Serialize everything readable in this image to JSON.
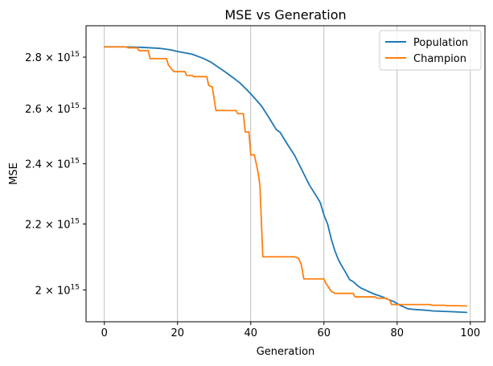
{
  "chart_data": {
    "type": "line",
    "title": "MSE vs Generation",
    "xlabel": "Generation",
    "ylabel": "MSE",
    "xlim": [
      -5,
      104
    ],
    "ylim": [
      1910000000000000.0,
      2930000000000000.0
    ],
    "yscale": "log",
    "grid": "x-major",
    "legend_position": "top-right",
    "x_ticks": [
      0,
      20,
      40,
      60,
      80,
      100
    ],
    "x_tick_labels": [
      "0",
      "20",
      "40",
      "60",
      "80",
      "100"
    ],
    "y_ticks": [
      2000000000000000.0,
      2200000000000000.0,
      2400000000000000.0,
      2600000000000000.0,
      2800000000000000.0
    ],
    "y_tick_labels": [
      {
        "mantissa": "2",
        "exponent": "15"
      },
      {
        "mantissa": "2.2",
        "exponent": "15"
      },
      {
        "mantissa": "2.4",
        "exponent": "15"
      },
      {
        "mantissa": "2.6",
        "exponent": "15"
      },
      {
        "mantissa": "2.8",
        "exponent": "15"
      }
    ],
    "times_symbol": "×",
    "base_label": "10",
    "series": [
      {
        "name": "Population",
        "color": "#1f77b4",
        "step": false,
        "points": [
          [
            0,
            2842000000000000.0
          ],
          [
            5,
            2842000000000000.0
          ],
          [
            10,
            2840000000000000.0
          ],
          [
            15,
            2836000000000000.0
          ],
          [
            18,
            2830000000000000.0
          ],
          [
            20,
            2823000000000000.0
          ],
          [
            24,
            2812000000000000.0
          ],
          [
            27,
            2795000000000000.0
          ],
          [
            29,
            2781000000000000.0
          ],
          [
            31,
            2761000000000000.0
          ],
          [
            33,
            2741000000000000.0
          ],
          [
            35,
            2720000000000000.0
          ],
          [
            37,
            2698000000000000.0
          ],
          [
            39,
            2670000000000000.0
          ],
          [
            41,
            2640000000000000.0
          ],
          [
            43,
            2608000000000000.0
          ],
          [
            45,
            2565000000000000.0
          ],
          [
            47,
            2521000000000000.0
          ],
          [
            48,
            2512000000000000.0
          ],
          [
            50,
            2469000000000000.0
          ],
          [
            52,
            2429000000000000.0
          ],
          [
            54,
            2378000000000000.0
          ],
          [
            56,
            2328000000000000.0
          ],
          [
            58,
            2289000000000000.0
          ],
          [
            59,
            2269000000000000.0
          ],
          [
            60,
            2229000000000000.0
          ],
          [
            61,
            2200000000000000.0
          ],
          [
            62,
            2153000000000000.0
          ],
          [
            63,
            2116000000000000.0
          ],
          [
            64,
            2088000000000000.0
          ],
          [
            65,
            2068000000000000.0
          ],
          [
            66,
            2050000000000000.0
          ],
          [
            67,
            2030000000000000.0
          ],
          [
            68,
            2024000000000000.0
          ],
          [
            69,
            2014000000000000.0
          ],
          [
            70,
            2006000000000000.0
          ],
          [
            72,
            1996000000000000.0
          ],
          [
            74,
            1987000000000000.0
          ],
          [
            76,
            1980000000000000.0
          ],
          [
            77,
            1975000000000000.0
          ],
          [
            79,
            1967000000000000.0
          ],
          [
            81,
            1955000000000000.0
          ],
          [
            83,
            1946000000000000.0
          ],
          [
            85,
            1944000000000000.0
          ],
          [
            88,
            1942000000000000.0
          ],
          [
            90,
            1940000000000000.0
          ],
          [
            95,
            1938000000000000.0
          ],
          [
            99,
            1936000000000000.0
          ]
        ]
      },
      {
        "name": "Champion",
        "color": "#ff7f0e",
        "step": false,
        "points": [
          [
            0,
            2842000000000000.0
          ],
          [
            6,
            2842000000000000.0
          ],
          [
            6.5,
            2838000000000000.0
          ],
          [
            9,
            2838000000000000.0
          ],
          [
            9.5,
            2826000000000000.0
          ],
          [
            12,
            2826000000000000.0
          ],
          [
            12.5,
            2794000000000000.0
          ],
          [
            17,
            2794000000000000.0
          ],
          [
            17.5,
            2768000000000000.0
          ],
          [
            19,
            2742000000000000.0
          ],
          [
            22,
            2742000000000000.0
          ],
          [
            22.5,
            2727000000000000.0
          ],
          [
            24,
            2727000000000000.0
          ],
          [
            24.5,
            2722000000000000.0
          ],
          [
            28,
            2722000000000000.0
          ],
          [
            28.5,
            2688000000000000.0
          ],
          [
            29.5,
            2682000000000000.0
          ],
          [
            30.5,
            2592000000000000.0
          ],
          [
            36,
            2592000000000000.0
          ],
          [
            36.5,
            2580000000000000.0
          ],
          [
            38,
            2580000000000000.0
          ],
          [
            38.5,
            2513000000000000.0
          ],
          [
            39.5,
            2513000000000000.0
          ],
          [
            40,
            2431000000000000.0
          ],
          [
            41,
            2431000000000000.0
          ],
          [
            42,
            2370000000000000.0
          ],
          [
            42.5,
            2328000000000000.0
          ],
          [
            43.3,
            2098000000000000.0
          ],
          [
            52,
            2098000000000000.0
          ],
          [
            53,
            2094000000000000.0
          ],
          [
            53.8,
            2075000000000000.0
          ],
          [
            54.5,
            2032000000000000.0
          ],
          [
            60,
            2032000000000000.0
          ],
          [
            60.5,
            2020000000000000.0
          ],
          [
            62,
            1996000000000000.0
          ],
          [
            63,
            1990000000000000.0
          ],
          [
            68,
            1990000000000000.0
          ],
          [
            68.5,
            1980000000000000.0
          ],
          [
            74,
            1980000000000000.0
          ],
          [
            74.5,
            1976000000000000.0
          ],
          [
            77,
            1976000000000000.0
          ],
          [
            78,
            1970000000000000.0
          ],
          [
            78.5,
            1958000000000000.0
          ],
          [
            89,
            1958000000000000.0
          ],
          [
            89.5,
            1956000000000000.0
          ],
          [
            93,
            1956000000000000.0
          ],
          [
            93.5,
            1955000000000000.0
          ],
          [
            97,
            1955000000000000.0
          ],
          [
            97.5,
            1954000000000000.0
          ],
          [
            99,
            1954000000000000.0
          ]
        ]
      }
    ]
  }
}
